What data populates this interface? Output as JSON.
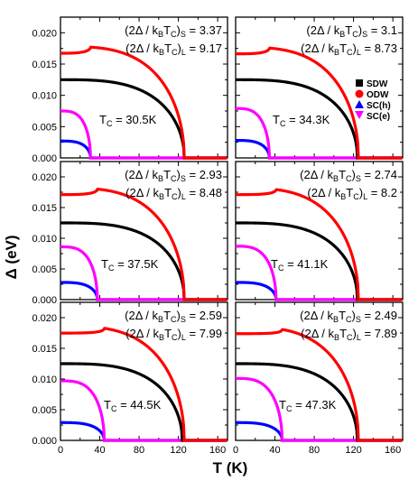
{
  "chart_data": {
    "type": "line",
    "xlabel": "T (K)",
    "ylabel": "Δ (eV)",
    "xlim": [
      0,
      170
    ],
    "ylim": [
      0,
      0.0225
    ],
    "x_ticks": [
      "0",
      "40",
      "80",
      "120",
      "160"
    ],
    "y_ticks": [
      "0.000",
      "0.005",
      "0.010",
      "0.015",
      "0.020"
    ],
    "legend": {
      "placement": "right, in top-right panel",
      "entries": [
        {
          "label": "SDW",
          "color": "#000000",
          "marker": "square"
        },
        {
          "label": "ODW",
          "color": "#ff0000",
          "marker": "circle"
        },
        {
          "label": "SC(h)",
          "color": "#0000ff",
          "marker": "triangle-up"
        },
        {
          "label": "SC(e)",
          "color": "#ff00ff",
          "marker": "triangle-down"
        }
      ]
    },
    "grid": false,
    "series_style": {
      "sdw": {
        "color": "#000000"
      },
      "odw": {
        "color": "#ff0000"
      },
      "sch": {
        "color": "#0000ff"
      },
      "sce": {
        "color": "#ff00ff"
      }
    },
    "panels": [
      {
        "ratio_s_label": "(2Δ / k",
        "ratio_s_sub1": "B",
        "ratio_s_mid": "T",
        "ratio_s_sub2": "C",
        "ratio_s_tail": ")",
        "ratio_s_sub3": "S",
        "ratio_s_value": " = 3.37",
        "ratio_l_label": "(2Δ / k",
        "ratio_l_sub1": "B",
        "ratio_l_mid": "T",
        "ratio_l_sub2": "C",
        "ratio_l_tail": ")",
        "ratio_l_sub3": "L",
        "ratio_l_value": " = 9.17",
        "tc_main": "T",
        "tc_sub": "C",
        "tc_value": " = 30.5K",
        "sdw": {
          "gap0": 0.0125,
          "tc": 126
        },
        "odw": {
          "gap0": 0.0178,
          "tc": 126,
          "kink_T": 30.5
        },
        "sch": {
          "gap0": 0.0027,
          "tc": 30.5
        },
        "sce": {
          "gap0": 0.0075,
          "tc": 30.5
        }
      },
      {
        "ratio_s_label": "(2Δ / k",
        "ratio_s_sub1": "B",
        "ratio_s_mid": "T",
        "ratio_s_sub2": "C",
        "ratio_s_tail": ")",
        "ratio_s_sub3": "S",
        "ratio_s_value": " = 3.1",
        "ratio_l_label": "(2Δ / k",
        "ratio_l_sub1": "B",
        "ratio_l_mid": "T",
        "ratio_l_sub2": "C",
        "ratio_l_tail": ")",
        "ratio_l_sub3": "L",
        "ratio_l_value": " = 8.73",
        "tc_main": "T",
        "tc_sub": "C",
        "tc_value": " = 34.3K",
        "sdw": {
          "gap0": 0.0125,
          "tc": 124
        },
        "odw": {
          "gap0": 0.0177,
          "tc": 125,
          "kink_T": 34.3
        },
        "sch": {
          "gap0": 0.0028,
          "tc": 34.3
        },
        "sce": {
          "gap0": 0.0079,
          "tc": 34.3
        }
      },
      {
        "ratio_s_label": "(2Δ / k",
        "ratio_s_sub1": "B",
        "ratio_s_mid": "T",
        "ratio_s_sub2": "C",
        "ratio_s_tail": ")",
        "ratio_s_sub3": "S",
        "ratio_s_value": " = 2.93",
        "ratio_l_label": "(2Δ / k",
        "ratio_l_sub1": "B",
        "ratio_l_mid": "T",
        "ratio_l_sub2": "C",
        "ratio_l_tail": ")",
        "ratio_l_sub3": "L",
        "ratio_l_value": " = 8.48",
        "tc_main": "T",
        "tc_sub": "C",
        "tc_value": " = 37.5K",
        "sdw": {
          "gap0": 0.0125,
          "tc": 126
        },
        "odw": {
          "gap0": 0.0182,
          "tc": 126,
          "kink_T": 37.5
        },
        "sch": {
          "gap0": 0.0028,
          "tc": 37.5
        },
        "sce": {
          "gap0": 0.0086,
          "tc": 37.5
        }
      },
      {
        "ratio_s_label": "(2Δ / k",
        "ratio_s_sub1": "B",
        "ratio_s_mid": "T",
        "ratio_s_sub2": "C",
        "ratio_s_tail": ")",
        "ratio_s_sub3": "S",
        "ratio_s_value": " = 2.74",
        "ratio_l_label": "(2Δ / k",
        "ratio_l_sub1": "B",
        "ratio_l_mid": "T",
        "ratio_l_sub2": "C",
        "ratio_l_tail": ")",
        "ratio_l_sub3": "L",
        "ratio_l_value": " = 8.2",
        "tc_main": "T",
        "tc_sub": "C",
        "tc_value": " = 41.1K",
        "sdw": {
          "gap0": 0.0125,
          "tc": 124
        },
        "odw": {
          "gap0": 0.0182,
          "tc": 125,
          "kink_T": 41.1
        },
        "sch": {
          "gap0": 0.0028,
          "tc": 41.1
        },
        "sce": {
          "gap0": 0.0087,
          "tc": 41.1
        }
      },
      {
        "ratio_s_label": "(2Δ / k",
        "ratio_s_sub1": "B",
        "ratio_s_mid": "T",
        "ratio_s_sub2": "C",
        "ratio_s_tail": ")",
        "ratio_s_sub3": "S",
        "ratio_s_value": " = 2.59",
        "ratio_l_label": "(2Δ / k",
        "ratio_l_sub1": "B",
        "ratio_l_mid": "T",
        "ratio_l_sub2": "C",
        "ratio_l_tail": ")",
        "ratio_l_sub3": "L",
        "ratio_l_value": " = 7.99",
        "tc_main": "T",
        "tc_sub": "C",
        "tc_value": " = 44.5K",
        "sdw": {
          "gap0": 0.0125,
          "tc": 124
        },
        "odw": {
          "gap0": 0.0186,
          "tc": 126,
          "kink_T": 44.5
        },
        "sch": {
          "gap0": 0.0029,
          "tc": 44.5
        },
        "sce": {
          "gap0": 0.0097,
          "tc": 44.5
        }
      },
      {
        "ratio_s_label": "(2Δ / k",
        "ratio_s_sub1": "B",
        "ratio_s_mid": "T",
        "ratio_s_sub2": "C",
        "ratio_s_tail": ")",
        "ratio_s_sub3": "S",
        "ratio_s_value": " = 2.49",
        "ratio_l_label": "(2Δ / k",
        "ratio_l_sub1": "B",
        "ratio_l_mid": "T",
        "ratio_l_sub2": "C",
        "ratio_l_tail": ")",
        "ratio_l_sub3": "L",
        "ratio_l_value": " = 7.89",
        "tc_main": "T",
        "tc_sub": "C",
        "tc_value": " = 47.3K",
        "sdw": {
          "gap0": 0.0125,
          "tc": 124
        },
        "odw": {
          "gap0": 0.0185,
          "tc": 125,
          "kink_T": 47.3
        },
        "sch": {
          "gap0": 0.0029,
          "tc": 47.3
        },
        "sce": {
          "gap0": 0.0101,
          "tc": 47.3
        }
      }
    ]
  }
}
